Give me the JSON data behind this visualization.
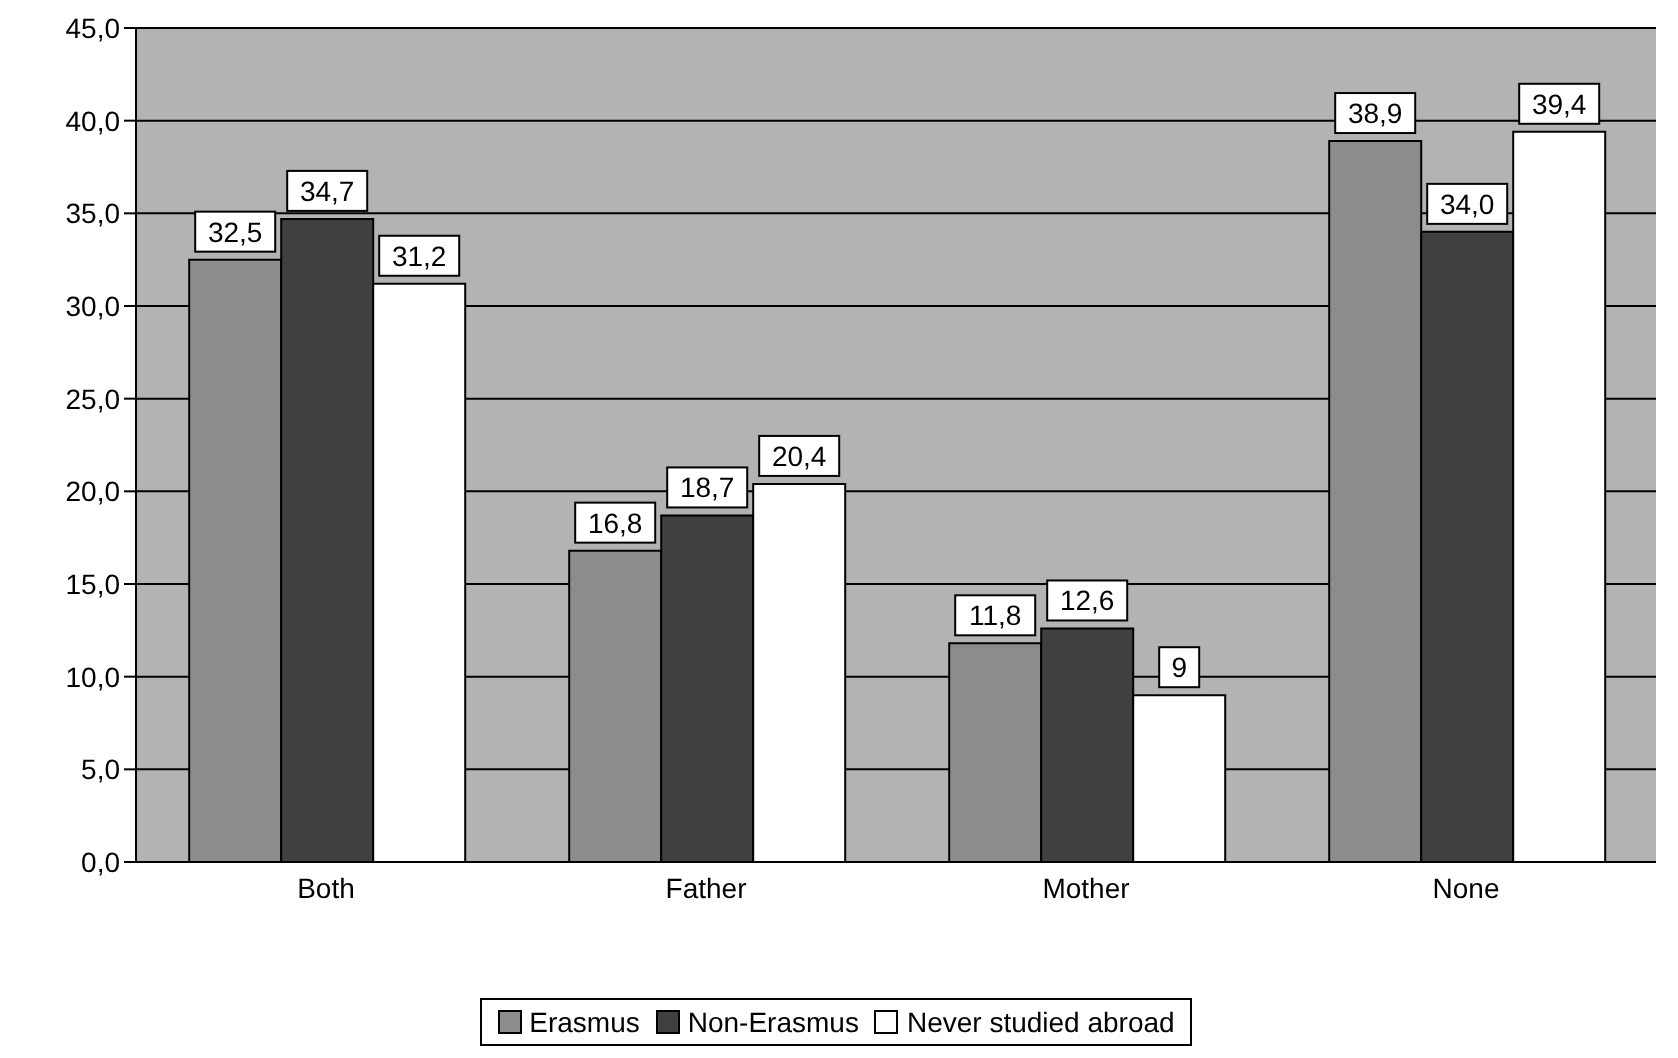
{
  "chart_data": {
    "type": "bar",
    "categories": [
      "Both",
      "Father",
      "Mother",
      "None"
    ],
    "series": [
      {
        "name": "Erasmus",
        "color": "#8c8c8c",
        "values": [
          32.5,
          16.8,
          11.8,
          38.9
        ],
        "value_labels": [
          "32,5",
          "16,8",
          "11,8",
          "38,9"
        ]
      },
      {
        "name": "Non-Erasmus",
        "color": "#404040",
        "values": [
          34.7,
          18.7,
          12.6,
          34.0
        ],
        "value_labels": [
          "34,7",
          "18,7",
          "12,6",
          "34,0"
        ]
      },
      {
        "name": "Never studied abroad",
        "color": "#ffffff",
        "values": [
          31.2,
          20.4,
          9,
          39.4
        ],
        "value_labels": [
          "31,2",
          "20,4",
          "9",
          "39,4"
        ]
      }
    ],
    "ylim": [
      0,
      45
    ],
    "yticks": [
      {
        "value": 0,
        "label": "0,0"
      },
      {
        "value": 5,
        "label": "5,0"
      },
      {
        "value": 10,
        "label": "10,0"
      },
      {
        "value": 15,
        "label": "15,0"
      },
      {
        "value": 20,
        "label": "20,0"
      },
      {
        "value": 25,
        "label": "25,0"
      },
      {
        "value": 30,
        "label": "30,0"
      },
      {
        "value": 35,
        "label": "35,0"
      },
      {
        "value": 40,
        "label": "40,0"
      },
      {
        "value": 45,
        "label": "45,0"
      }
    ],
    "grid": "y",
    "legend": "bottom"
  }
}
